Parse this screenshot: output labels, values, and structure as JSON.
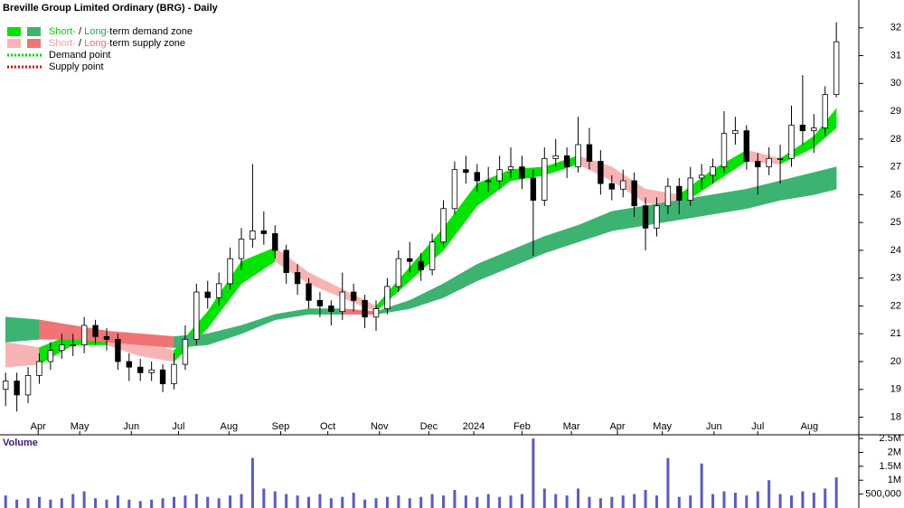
{
  "chart_data": [
    {
      "type": "candlestick",
      "title": "Breville Group Limited Ordinary (BRG) - Daily",
      "legend": [
        {
          "style": "box",
          "swatch": [
            "#00e400",
            "#3cb371"
          ],
          "parts": [
            {
              "text": "Short-",
              "color": "#00d400"
            },
            {
              "text": " / ",
              "color": "#000000"
            },
            {
              "text": "Long-",
              "color": "#2e9e5e"
            },
            {
              "text": "term demand zone",
              "color": "#000000"
            }
          ]
        },
        {
          "style": "box",
          "swatch": [
            "#f8b4b4",
            "#f07474"
          ],
          "parts": [
            {
              "text": "Short-",
              "color": "#f4a0a0"
            },
            {
              "text": " / ",
              "color": "#000000"
            },
            {
              "text": "Long-",
              "color": "#f07474"
            },
            {
              "text": "term supply zone",
              "color": "#000000"
            }
          ]
        },
        {
          "style": "dotted",
          "swatch": [
            "#00d400"
          ],
          "parts": [
            {
              "text": "Demand point",
              "color": "#000000"
            }
          ]
        },
        {
          "style": "dotted",
          "swatch": [
            "#e00000"
          ],
          "parts": [
            {
              "text": "Supply point",
              "color": "#000000"
            }
          ]
        }
      ],
      "x": [
        0,
        1,
        2,
        3,
        4,
        5,
        6,
        7,
        8,
        9,
        10,
        11,
        12,
        13,
        14,
        15,
        16,
        17,
        18,
        19,
        20,
        21,
        22,
        23,
        24,
        25,
        26,
        27,
        28,
        29,
        30,
        31,
        32,
        33,
        34,
        35,
        36,
        37,
        38,
        39,
        40,
        41,
        42,
        43,
        44,
        45,
        46,
        47,
        48,
        49,
        50,
        51,
        52,
        53,
        54,
        55,
        56,
        57,
        58,
        59,
        60,
        61,
        62,
        63,
        64,
        65,
        66,
        67,
        68,
        69,
        70,
        71,
        72,
        73,
        74
      ],
      "open": [
        19.0,
        19.3,
        18.8,
        19.5,
        20.0,
        20.4,
        20.6,
        20.6,
        21.3,
        20.9,
        20.8,
        20.0,
        19.8,
        19.6,
        19.7,
        19.2,
        19.9,
        20.8,
        22.5,
        22.3,
        22.8,
        23.7,
        24.4,
        24.7,
        24.6,
        24.0,
        23.2,
        22.8,
        22.2,
        22.0,
        21.8,
        22.5,
        22.2,
        21.6,
        21.9,
        22.7,
        23.7,
        23.6,
        23.3,
        24.3,
        25.5,
        26.9,
        26.8,
        26.5,
        26.5,
        26.9,
        27.0,
        26.6,
        25.8,
        27.3,
        27.4,
        27.0,
        27.8,
        27.2,
        26.4,
        26.2,
        26.5,
        25.6,
        24.8,
        25.6,
        26.3,
        25.8,
        26.6,
        26.7,
        27.0,
        28.2,
        28.3,
        27.2,
        27.0,
        27.3,
        27.3,
        28.5,
        28.3,
        28.4,
        29.6
      ],
      "high": [
        19.6,
        19.6,
        19.8,
        20.3,
        20.7,
        21.0,
        21.0,
        21.6,
        21.5,
        21.2,
        21.0,
        20.3,
        20.1,
        20.0,
        19.9,
        20.3,
        21.3,
        22.8,
        22.9,
        23.2,
        24.1,
        24.8,
        27.1,
        25.4,
        24.9,
        24.2,
        23.5,
        23.0,
        22.5,
        22.2,
        23.2,
        22.8,
        22.4,
        22.2,
        23.0,
        24.0,
        24.3,
        23.9,
        24.6,
        25.8,
        27.2,
        27.4,
        27.1,
        27.0,
        27.4,
        27.7,
        27.4,
        26.9,
        27.7,
        28.0,
        27.7,
        28.8,
        28.4,
        27.6,
        26.7,
        26.9,
        26.8,
        25.9,
        25.9,
        26.6,
        26.6,
        27.0,
        27.1,
        27.3,
        29.0,
        28.8,
        28.5,
        27.5,
        27.7,
        27.8,
        29.2,
        30.3,
        28.9,
        29.9,
        32.2
      ],
      "low": [
        18.4,
        18.2,
        18.5,
        19.2,
        19.7,
        20.1,
        20.2,
        20.3,
        20.6,
        20.4,
        19.7,
        19.3,
        19.3,
        19.3,
        18.9,
        19.0,
        19.7,
        20.6,
        21.9,
        22.0,
        22.6,
        23.3,
        24.1,
        24.2,
        23.7,
        22.8,
        22.4,
        21.9,
        21.6,
        21.3,
        21.5,
        21.8,
        21.2,
        21.1,
        21.7,
        22.5,
        23.2,
        22.9,
        23.1,
        24.1,
        25.3,
        26.4,
        26.1,
        26.1,
        26.2,
        26.6,
        26.2,
        23.8,
        25.6,
        27.0,
        26.6,
        26.8,
        26.9,
        26.0,
        25.8,
        25.9,
        25.2,
        24.0,
        24.5,
        25.3,
        25.3,
        25.6,
        26.2,
        26.4,
        26.8,
        27.8,
        26.9,
        26.0,
        26.7,
        26.4,
        27.0,
        27.8,
        27.5,
        28.1,
        29.5
      ],
      "close": [
        19.3,
        18.8,
        19.5,
        20.0,
        20.4,
        20.6,
        20.6,
        21.3,
        20.9,
        20.8,
        20.0,
        19.8,
        19.6,
        19.7,
        19.2,
        19.9,
        20.8,
        22.5,
        22.3,
        22.8,
        23.7,
        24.4,
        24.7,
        24.6,
        24.0,
        23.2,
        22.8,
        22.2,
        22.0,
        21.8,
        22.5,
        22.2,
        21.6,
        21.9,
        22.7,
        23.7,
        23.6,
        23.3,
        24.3,
        25.5,
        26.9,
        26.8,
        26.5,
        26.5,
        26.9,
        27.0,
        26.6,
        25.8,
        27.3,
        27.4,
        27.0,
        27.8,
        27.2,
        26.4,
        26.2,
        26.5,
        25.6,
        24.8,
        25.6,
        26.3,
        25.8,
        26.6,
        26.7,
        27.0,
        28.2,
        28.3,
        27.2,
        27.0,
        27.3,
        27.3,
        28.5,
        28.3,
        28.4,
        29.6,
        31.5
      ],
      "bands": [
        {
          "demand_color": "#00e400",
          "supply_color": "#f8b4b4",
          "x": [
            0,
            3,
            6,
            9,
            12,
            15,
            18,
            21,
            24,
            27,
            30,
            33,
            36,
            39,
            42,
            45,
            48,
            51,
            54,
            57,
            60,
            63,
            66,
            69,
            72,
            74
          ],
          "upper": [
            20.7,
            20.5,
            21.0,
            21.0,
            20.7,
            20.4,
            21.8,
            23.6,
            24.1,
            23.2,
            22.6,
            22.0,
            23.4,
            24.8,
            26.4,
            26.9,
            27.0,
            27.4,
            27.0,
            26.2,
            26.0,
            26.9,
            27.6,
            27.3,
            28.1,
            29.1
          ],
          "lower": [
            19.8,
            19.9,
            20.6,
            20.6,
            20.2,
            20.0,
            21.2,
            22.8,
            23.6,
            22.8,
            22.3,
            21.8,
            22.9,
            24.0,
            25.6,
            26.5,
            26.7,
            27.1,
            26.5,
            25.7,
            25.6,
            26.4,
            27.2,
            27.1,
            27.7,
            28.4
          ]
        },
        {
          "demand_color": "#3cb371",
          "supply_color": "#f07474",
          "x": [
            0,
            3,
            6,
            9,
            12,
            15,
            18,
            21,
            24,
            27,
            30,
            33,
            36,
            39,
            42,
            45,
            48,
            51,
            54,
            57,
            60,
            63,
            66,
            69,
            72,
            74
          ],
          "upper": [
            21.6,
            21.5,
            21.3,
            21.1,
            21.0,
            20.9,
            21.0,
            21.3,
            21.7,
            21.9,
            21.9,
            21.8,
            22.2,
            22.8,
            23.5,
            24.0,
            24.5,
            24.9,
            25.4,
            25.6,
            25.8,
            26.0,
            26.2,
            26.5,
            26.8,
            27.0
          ],
          "lower": [
            20.7,
            20.8,
            20.8,
            20.7,
            20.6,
            20.5,
            20.6,
            21.0,
            21.5,
            21.7,
            21.7,
            21.7,
            21.9,
            22.3,
            22.9,
            23.4,
            23.9,
            24.3,
            24.7,
            24.9,
            25.1,
            25.3,
            25.5,
            25.8,
            26.0,
            26.2
          ]
        }
      ],
      "xlim": [
        -0.5,
        76
      ],
      "xticks": [
        {
          "value": 2.9,
          "label": "Apr"
        },
        {
          "value": 6.6,
          "label": "May"
        },
        {
          "value": 11.2,
          "label": "Jun"
        },
        {
          "value": 15.4,
          "label": "Jul"
        },
        {
          "value": 19.9,
          "label": "Aug"
        },
        {
          "value": 24.5,
          "label": "Sep"
        },
        {
          "value": 28.7,
          "label": "Oct"
        },
        {
          "value": 33.3,
          "label": "Nov"
        },
        {
          "value": 37.7,
          "label": "Dec"
        },
        {
          "value": 41.7,
          "label": "2024"
        },
        {
          "value": 46.0,
          "label": "Feb"
        },
        {
          "value": 50.4,
          "label": "Mar"
        },
        {
          "value": 54.5,
          "label": "Apr"
        },
        {
          "value": 58.5,
          "label": "May"
        },
        {
          "value": 63.1,
          "label": "Jun"
        },
        {
          "value": 67.0,
          "label": "Jul"
        },
        {
          "value": 71.6,
          "label": "Aug"
        }
      ],
      "ylim": [
        17.4,
        33.0
      ],
      "yticks": [
        18,
        19,
        20,
        21,
        22,
        23,
        24,
        25,
        26,
        27,
        28,
        29,
        30,
        31,
        32
      ]
    },
    {
      "type": "bar",
      "title": "Volume",
      "color": "#5a5ac8",
      "x": [
        0,
        1,
        2,
        3,
        4,
        5,
        6,
        7,
        8,
        9,
        10,
        11,
        12,
        13,
        14,
        15,
        16,
        17,
        18,
        19,
        20,
        21,
        22,
        23,
        24,
        25,
        26,
        27,
        28,
        29,
        30,
        31,
        32,
        33,
        34,
        35,
        36,
        37,
        38,
        39,
        40,
        41,
        42,
        43,
        44,
        45,
        46,
        47,
        48,
        49,
        50,
        51,
        52,
        53,
        54,
        55,
        56,
        57,
        58,
        59,
        60,
        61,
        62,
        63,
        64,
        65,
        66,
        67,
        68,
        69,
        70,
        71,
        72,
        73,
        74
      ],
      "values": [
        450000,
        300000,
        350000,
        400000,
        300000,
        350000,
        500000,
        600000,
        350000,
        300000,
        450000,
        300000,
        250000,
        300000,
        350000,
        400000,
        450000,
        500000,
        400000,
        350000,
        450000,
        500000,
        1800000,
        700000,
        600000,
        500000,
        450000,
        400000,
        500000,
        350000,
        400000,
        550000,
        300000,
        350000,
        400000,
        450000,
        350000,
        400000,
        500000,
        450000,
        650000,
        450000,
        400000,
        500000,
        400000,
        450000,
        500000,
        2500000,
        700000,
        500000,
        450000,
        700000,
        400000,
        350000,
        400000,
        450000,
        500000,
        650000,
        450000,
        1800000,
        400000,
        450000,
        1600000,
        500000,
        600000,
        550000,
        450000,
        600000,
        1000000,
        500000,
        450000,
        600000,
        550000,
        700000,
        1100000
      ],
      "xlim": [
        -0.5,
        76
      ],
      "ylim": [
        0,
        2600000
      ],
      "yticks": [
        {
          "value": 2500000,
          "label": "2.5M"
        },
        {
          "value": 2000000,
          "label": "2M"
        },
        {
          "value": 1500000,
          "label": "1.5M"
        },
        {
          "value": 1000000,
          "label": "1M"
        },
        {
          "value": 500000,
          "label": "500,000"
        }
      ]
    }
  ]
}
